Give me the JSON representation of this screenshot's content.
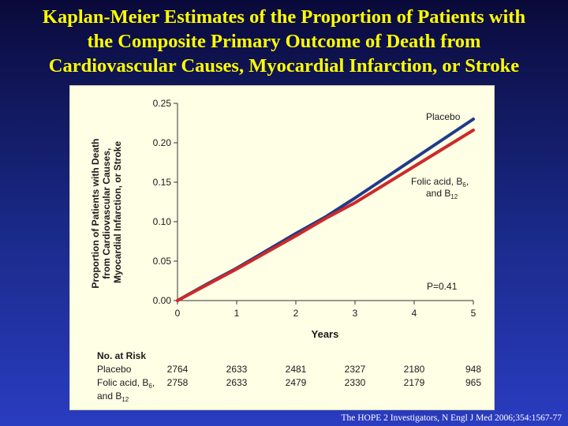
{
  "slide": {
    "title_lines": [
      "Kaplan-Meier Estimates of the Proportion of Patients with",
      "the Composite Primary Outcome of Death from",
      "Cardiovascular Causes, Myocardial Infarction, or Stroke"
    ],
    "citation": "The HOPE 2 Investigators, N Engl J Med 2006;354:1567-77",
    "title_color": "#ffff00"
  },
  "chart_data": {
    "type": "line",
    "title": "",
    "xlabel": "Years",
    "ylabel_lines": [
      "Proportion of Patients with Death",
      "from Cardiovascular Causes,",
      "Myocardial Infarction, or Stroke"
    ],
    "xlim": [
      0,
      5
    ],
    "ylim": [
      0,
      0.25
    ],
    "x_ticks": [
      "0",
      "1",
      "2",
      "3",
      "4",
      "5"
    ],
    "y_ticks": [
      "0.00",
      "0.05",
      "0.10",
      "0.15",
      "0.20",
      "0.25"
    ],
    "grid": false,
    "p_value": "P=0.41",
    "series": [
      {
        "name": "Placebo",
        "color": "#1f3c88",
        "x": [
          0,
          0.5,
          1.0,
          1.5,
          2.0,
          2.5,
          3.0,
          3.5,
          4.0,
          4.5,
          5.0
        ],
        "y": [
          0,
          0.021,
          0.041,
          0.063,
          0.085,
          0.106,
          0.13,
          0.155,
          0.18,
          0.205,
          0.23
        ]
      },
      {
        "name": "Folic acid, B6, and B12",
        "label_parts": [
          "Folic acid, B",
          "6",
          ",",
          "and B",
          "12"
        ],
        "color": "#cc2a2a",
        "x": [
          0,
          0.5,
          1.0,
          1.5,
          2.0,
          2.5,
          3.0,
          3.5,
          4.0,
          4.5,
          5.0
        ],
        "y": [
          0,
          0.02,
          0.04,
          0.061,
          0.082,
          0.104,
          0.124,
          0.147,
          0.17,
          0.193,
          0.216
        ]
      }
    ],
    "risk_table": {
      "heading": "No. at Risk",
      "rows": [
        {
          "label_parts": [
            "Placebo"
          ],
          "values": [
            "2764",
            "2633",
            "2481",
            "2327",
            "2180",
            "948"
          ]
        },
        {
          "label_parts": [
            "Folic acid, B",
            "6",
            ",",
            "and B",
            "12"
          ],
          "values": [
            "2758",
            "2633",
            "2479",
            "2330",
            "2179",
            "965"
          ]
        }
      ]
    }
  }
}
